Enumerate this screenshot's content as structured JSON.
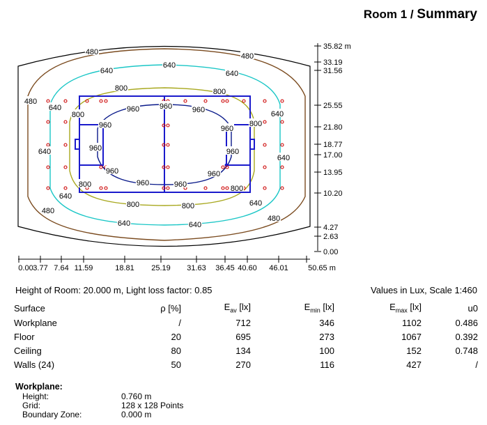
{
  "title": {
    "prefix": "Room 1 / ",
    "main": "Summary"
  },
  "plan": {
    "y_axis_labels": [
      "35.82 m",
      "33.19",
      "31.56",
      "25.55",
      "21.80",
      "18.77",
      "17.00",
      "13.95",
      "10.20",
      "4.27",
      "2.63",
      "0.00"
    ],
    "x_axis_labels": [
      "0.00",
      "3.77",
      "7.64",
      "11.59",
      "18.81",
      "25.19",
      "31.63",
      "36.45",
      "40.60",
      "46.01",
      "50.65 m"
    ],
    "isolines": {
      "l480": "480",
      "l640": "640",
      "l800": "800",
      "l960": "960"
    },
    "colors": {
      "c480": "#7a4a1e",
      "c640": "#19c6c6",
      "c800": "#a8a81e",
      "c960": "#0a1a8a",
      "court": "#1a1acc",
      "luminaire": "#cc0000"
    }
  },
  "info": {
    "left": "Height of Room: 20.000 m, Light loss factor: 0.85",
    "right": "Values in Lux, Scale 1:460"
  },
  "table": {
    "headers": {
      "surface": "Surface",
      "rho": "ρ [%]",
      "eav_sym": "E",
      "eav_sub": "av",
      "eav_unit": " [lx]",
      "emin_sym": "E",
      "emin_sub": "min",
      "emin_unit": " [lx]",
      "emax_sym": "E",
      "emax_sub": "max",
      "emax_unit": " [lx]",
      "u0": "u0"
    },
    "rows": [
      {
        "surface": "Workplane",
        "rho": "/",
        "eav": "712",
        "emin": "346",
        "emax": "1102",
        "u0": "0.486"
      },
      {
        "surface": "Floor",
        "rho": "20",
        "eav": "695",
        "emin": "273",
        "emax": "1067",
        "u0": "0.392"
      },
      {
        "surface": "Ceiling",
        "rho": "80",
        "eav": "134",
        "emin": "100",
        "emax": "152",
        "u0": "0.748"
      },
      {
        "surface": "Walls (24)",
        "rho": "50",
        "eav": "270",
        "emin": "116",
        "emax": "427",
        "u0": "/"
      }
    ]
  },
  "workplane": {
    "title": "Workplane:",
    "rows": [
      {
        "key": "Height:",
        "value": "0.760 m"
      },
      {
        "key": "Grid:",
        "value": "128 x 128 Points"
      },
      {
        "key": "Boundary Zone:",
        "value": "0.000 m"
      }
    ]
  }
}
